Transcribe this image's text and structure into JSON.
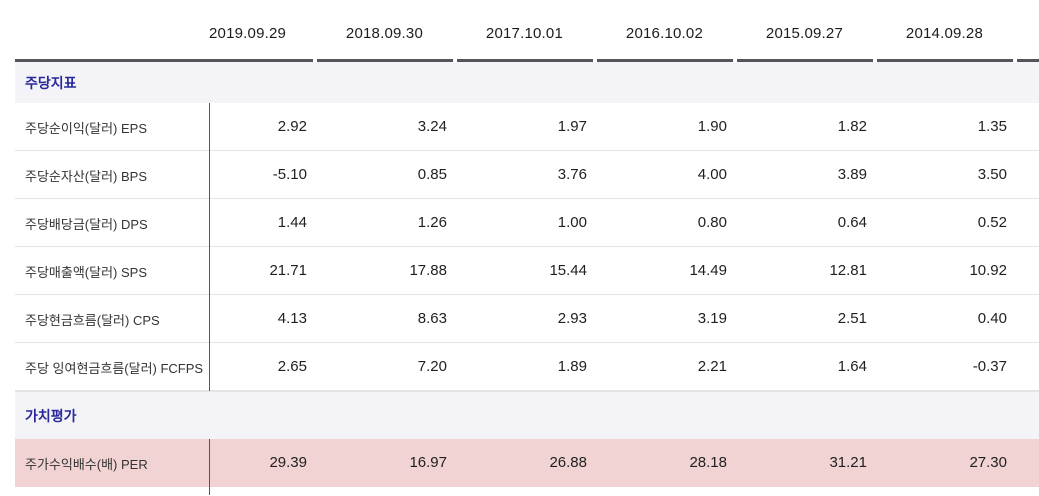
{
  "table": {
    "columns": [
      "2019.09.29",
      "2018.09.30",
      "2017.10.01",
      "2016.10.02",
      "2015.09.27",
      "2014.09.28"
    ],
    "sections": [
      {
        "title": "주당지표",
        "rows": [
          {
            "label": "주당순이익(달러) EPS",
            "values": [
              "2.92",
              "3.24",
              "1.97",
              "1.90",
              "1.82",
              "1.35"
            ]
          },
          {
            "label": "주당순자산(달러) BPS",
            "values": [
              "-5.10",
              "0.85",
              "3.76",
              "4.00",
              "3.89",
              "3.50"
            ]
          },
          {
            "label": "주당배당금(달러) DPS",
            "values": [
              "1.44",
              "1.26",
              "1.00",
              "0.80",
              "0.64",
              "0.52"
            ]
          },
          {
            "label": "주당매출액(달러) SPS",
            "values": [
              "21.71",
              "17.88",
              "15.44",
              "14.49",
              "12.81",
              "10.92"
            ]
          },
          {
            "label": "주당현금흐름(달러) CPS",
            "values": [
              "4.13",
              "8.63",
              "2.93",
              "3.19",
              "2.51",
              "0.40"
            ]
          },
          {
            "label": "주당 잉여현금흐름(달러) FCFPS",
            "values": [
              "2.65",
              "7.20",
              "1.89",
              "2.21",
              "1.64",
              "-0.37"
            ]
          }
        ]
      },
      {
        "title": "가치평가",
        "rows": [
          {
            "label": "주가수익배수(배) PER",
            "values": [
              "29.39",
              "16.97",
              "26.88",
              "28.18",
              "31.21",
              "27.30"
            ],
            "highlighted": true
          }
        ]
      }
    ],
    "colors": {
      "accent_navy": "#28289b",
      "section_band_bg": "#f4f4f8",
      "highlight_row_bg": "#f1d3d3",
      "header_line": "#55565a"
    }
  }
}
